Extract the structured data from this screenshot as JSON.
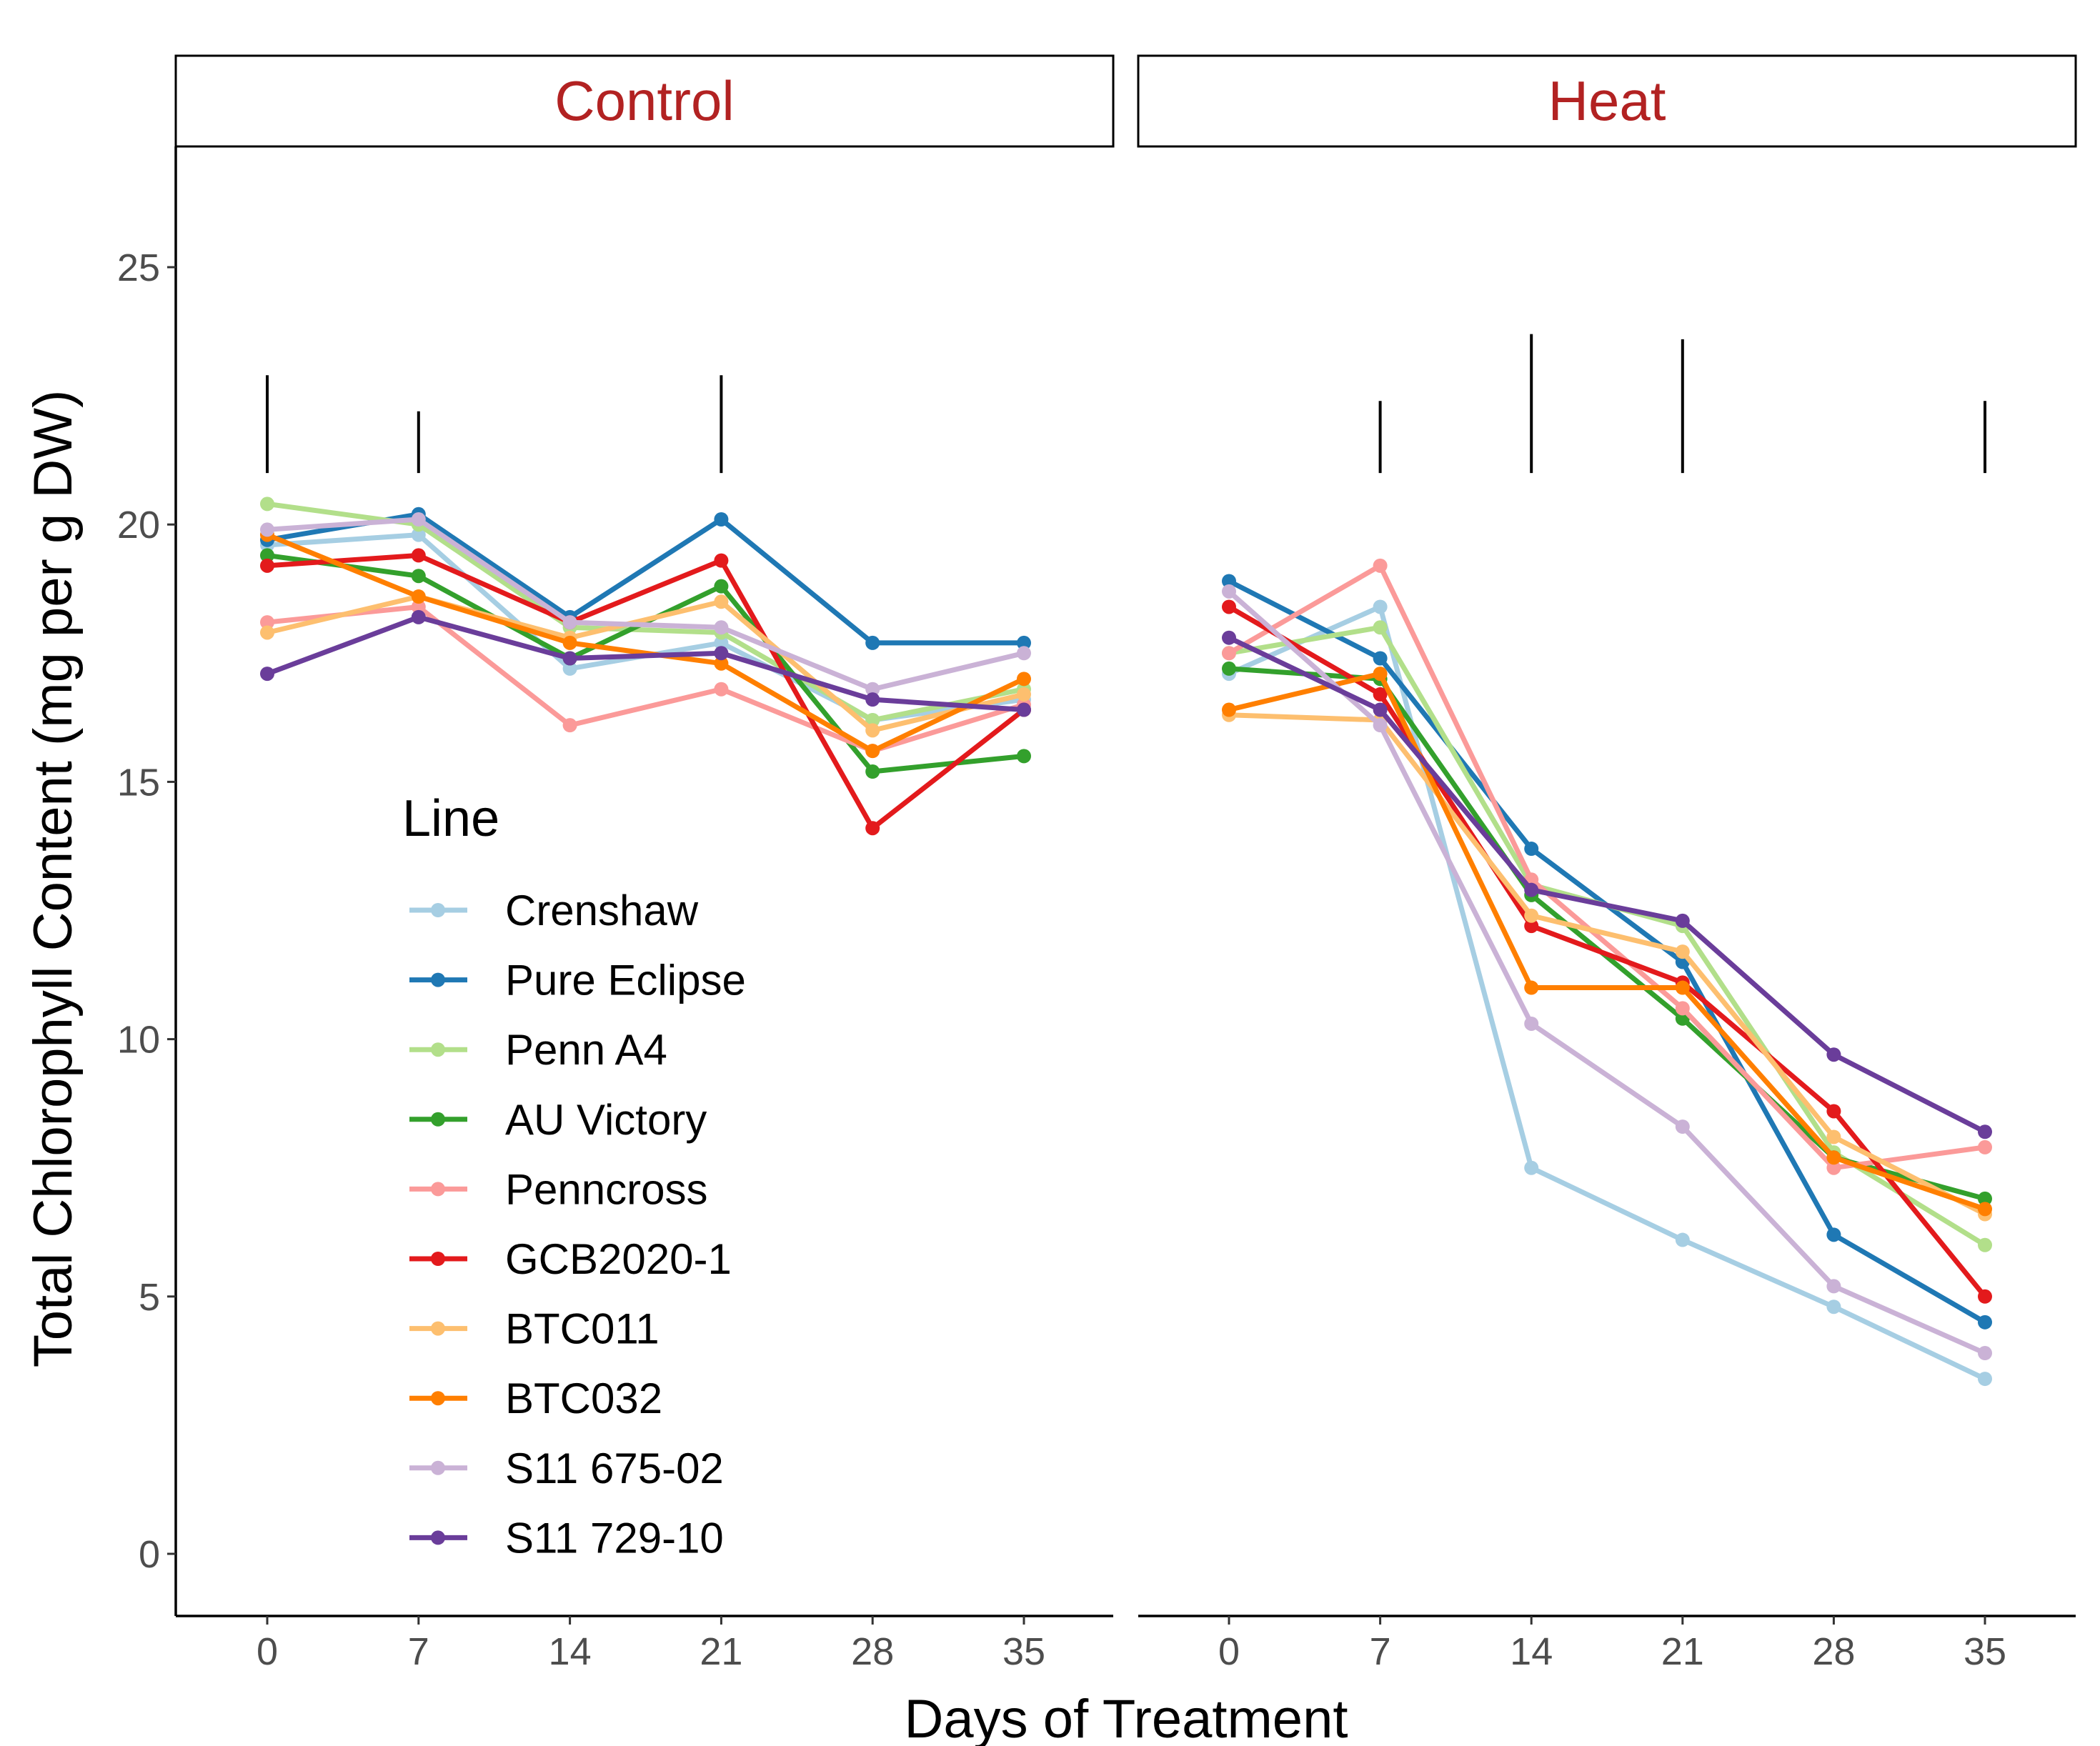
{
  "chart_data": {
    "type": "line",
    "xlabel": "Days of Treatment",
    "ylabel": "Total Chlorophyll Content (mg per g DW)",
    "ylim": [
      -1.2,
      27.5
    ],
    "yticks": [
      0,
      5,
      10,
      15,
      20,
      25
    ],
    "xticks": [
      0,
      7,
      14,
      21,
      28,
      35
    ],
    "grid": false,
    "legend": {
      "title": "Line",
      "placement": "inside-left"
    },
    "x": [
      0,
      7,
      14,
      21,
      28,
      35
    ],
    "panels": [
      {
        "label": "Control",
        "significance_bars": [
          {
            "x": 0,
            "from": 21.0,
            "to": 22.9
          },
          {
            "x": 7,
            "from": 21.0,
            "to": 22.2
          },
          {
            "x": 21,
            "from": 21.0,
            "to": 22.9
          }
        ],
        "series": [
          {
            "name": "Crenshaw",
            "values": [
              19.6,
              19.8,
              17.2,
              17.7,
              16.2,
              16.6
            ]
          },
          {
            "name": "Pure Eclipse",
            "values": [
              19.7,
              20.2,
              18.2,
              20.1,
              17.7,
              17.7
            ]
          },
          {
            "name": "Penn A4",
            "values": [
              20.4,
              20.0,
              18.0,
              17.9,
              16.2,
              16.8
            ]
          },
          {
            "name": "AU Victory",
            "values": [
              19.4,
              19.0,
              17.4,
              18.8,
              15.2,
              15.5
            ]
          },
          {
            "name": "Penncross",
            "values": [
              18.1,
              18.4,
              16.1,
              16.8,
              15.6,
              16.5
            ]
          },
          {
            "name": "GCB2020-1",
            "values": [
              19.2,
              19.4,
              18.1,
              19.3,
              14.1,
              16.4
            ]
          },
          {
            "name": "BTC011",
            "values": [
              17.9,
              18.6,
              17.8,
              18.5,
              16.0,
              16.7
            ]
          },
          {
            "name": "BTC032",
            "values": [
              19.8,
              18.6,
              17.7,
              17.3,
              15.6,
              17.0
            ]
          },
          {
            "name": "S11 675-02",
            "values": [
              19.9,
              20.1,
              18.1,
              18.0,
              16.8,
              17.5
            ]
          },
          {
            "name": "S11 729-10",
            "values": [
              17.1,
              18.2,
              17.4,
              17.5,
              16.6,
              16.4
            ]
          }
        ]
      },
      {
        "label": "Heat",
        "significance_bars": [
          {
            "x": 7,
            "from": 21.0,
            "to": 22.4
          },
          {
            "x": 14,
            "from": 21.0,
            "to": 23.7
          },
          {
            "x": 21,
            "from": 21.0,
            "to": 23.6
          },
          {
            "x": 35,
            "from": 21.0,
            "to": 22.4
          }
        ],
        "series": [
          {
            "name": "Crenshaw",
            "values": [
              17.1,
              18.4,
              7.5,
              6.1,
              4.8,
              3.4
            ]
          },
          {
            "name": "Pure Eclipse",
            "values": [
              18.9,
              17.4,
              13.7,
              11.5,
              6.2,
              4.5
            ]
          },
          {
            "name": "Penn A4",
            "values": [
              17.5,
              18.0,
              13.0,
              12.2,
              7.8,
              6.0
            ]
          },
          {
            "name": "AU Victory",
            "values": [
              17.2,
              17.0,
              12.8,
              10.4,
              7.7,
              6.9
            ]
          },
          {
            "name": "Penncross",
            "values": [
              17.5,
              19.2,
              13.1,
              10.6,
              7.5,
              7.9
            ]
          },
          {
            "name": "GCB2020-1",
            "values": [
              18.4,
              16.7,
              12.2,
              11.1,
              8.6,
              5.0
            ]
          },
          {
            "name": "BTC011",
            "values": [
              16.3,
              16.2,
              12.4,
              11.7,
              8.1,
              6.6
            ]
          },
          {
            "name": "BTC032",
            "values": [
              16.4,
              17.1,
              11.0,
              11.0,
              7.7,
              6.7
            ]
          },
          {
            "name": "S11 675-02",
            "values": [
              18.7,
              16.1,
              10.3,
              8.3,
              5.2,
              3.9
            ]
          },
          {
            "name": "S11 729-10",
            "values": [
              17.8,
              16.4,
              12.9,
              12.3,
              9.7,
              8.2
            ]
          }
        ]
      }
    ],
    "colors": {
      "Crenshaw": "#a6cee3",
      "Pure Eclipse": "#1f78b4",
      "Penn A4": "#b2df8a",
      "AU Victory": "#33a02c",
      "Penncross": "#fb9a99",
      "GCB2020-1": "#e31a1c",
      "BTC011": "#fdbf6f",
      "BTC032": "#ff7f00",
      "S11 675-02": "#cab2d6",
      "S11 729-10": "#6a3d9a"
    },
    "strip_text_color": "#b22222"
  }
}
